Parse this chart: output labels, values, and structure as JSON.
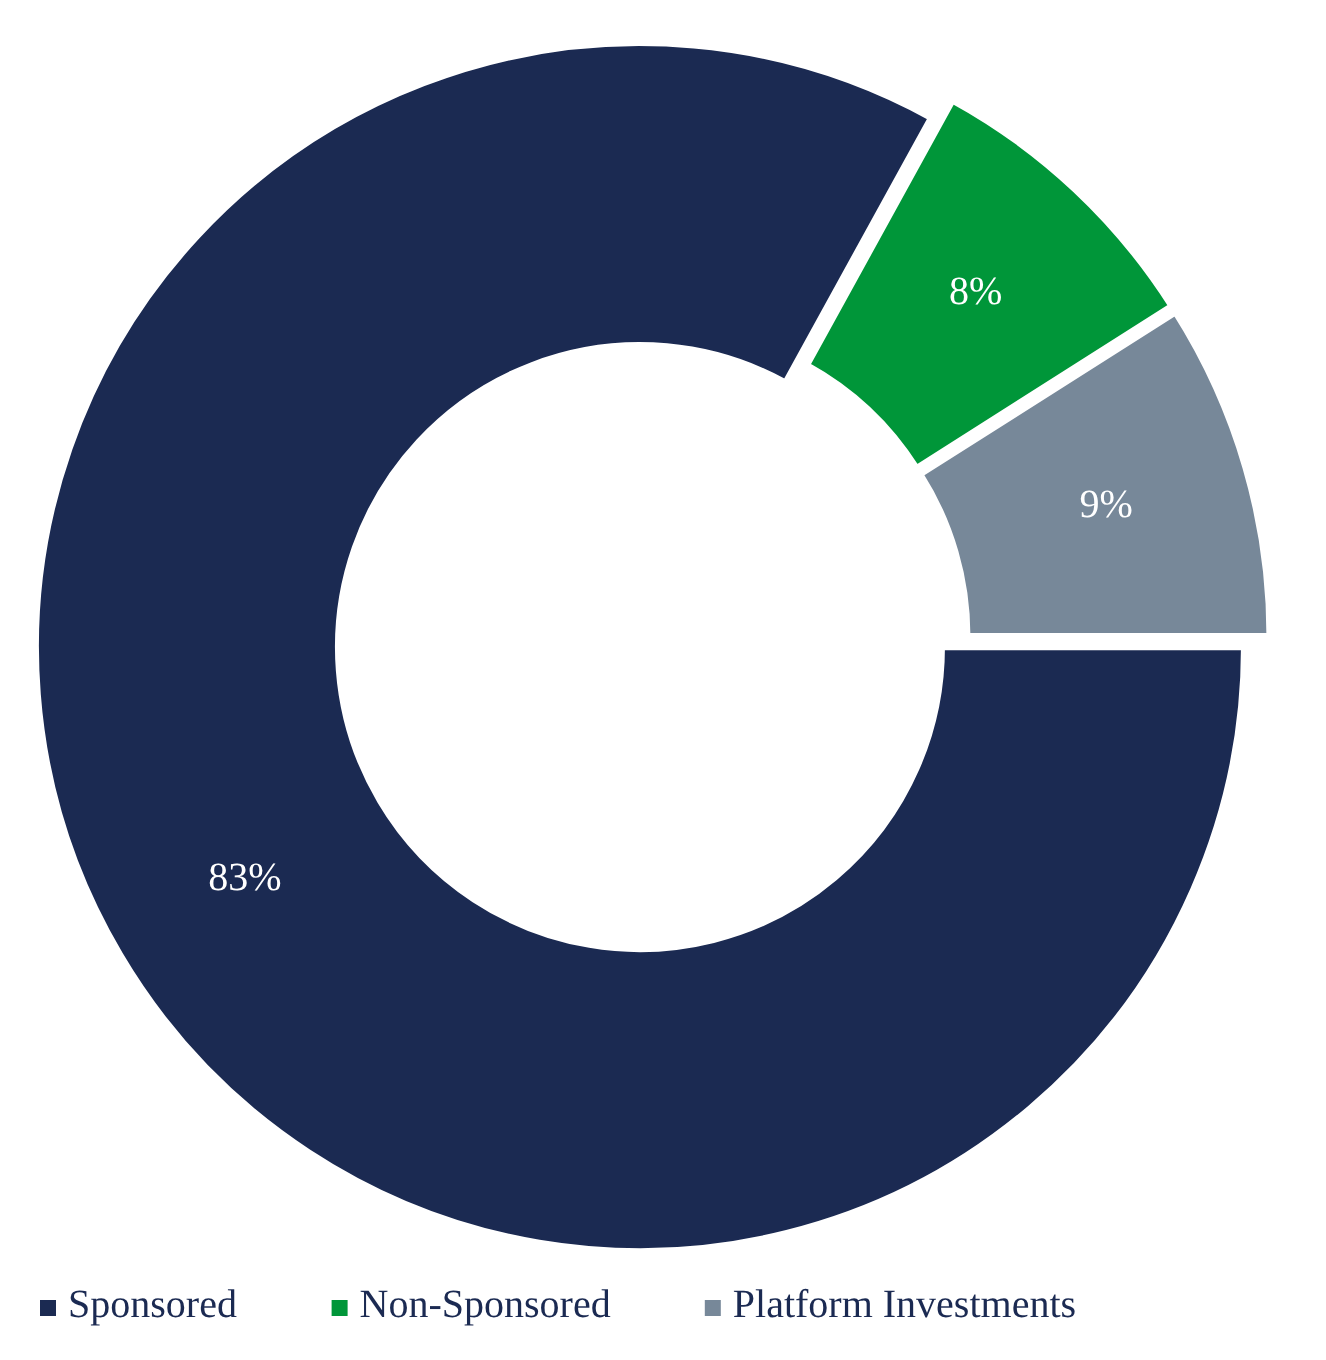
{
  "chart_data": {
    "type": "donut",
    "categories": [
      "Sponsored",
      "Non-Sponsored",
      "Platform Investments"
    ],
    "values": [
      83,
      8,
      9
    ],
    "colors": [
      "#1b2a52",
      "#009639",
      "#778899"
    ],
    "value_labels": [
      "83%",
      "8%",
      "9%"
    ],
    "legend": "bottom"
  }
}
